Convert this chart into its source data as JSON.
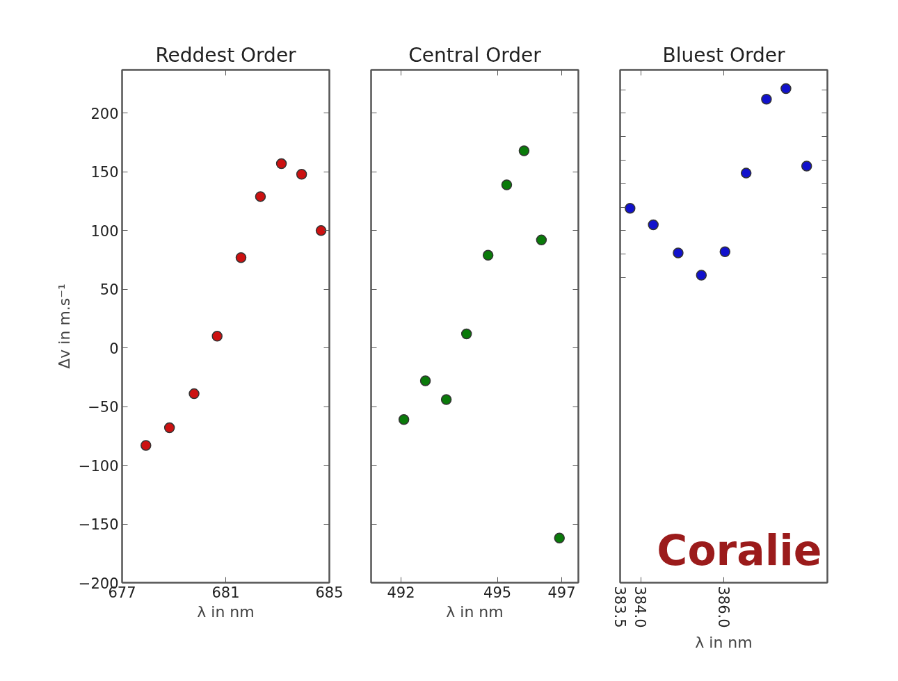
{
  "chart_data": [
    {
      "type": "scatter",
      "title": "Reddest Order",
      "xlabel": "λ in nm",
      "ylabel": "Δv in m.s⁻¹",
      "marker": "circle",
      "xlim": [
        677,
        685
      ],
      "xticks": [
        677,
        681,
        685
      ],
      "ylim": [
        -200,
        237
      ],
      "yticks": [
        {
          "value": -200,
          "label": "−200"
        },
        {
          "value": -150,
          "label": "−150"
        },
        {
          "value": -100,
          "label": "−100"
        },
        {
          "value": -50,
          "label": "−50"
        },
        0,
        50,
        100,
        150,
        200
      ],
      "series": [
        {
          "color": "#cc1111",
          "x": [
            677.92,
            678.83,
            679.78,
            680.67,
            681.59,
            682.34,
            683.15,
            683.93,
            684.68
          ],
          "values": [
            -83,
            -68,
            -39,
            10,
            77,
            129,
            157,
            148,
            100
          ]
        }
      ]
    },
    {
      "type": "scatter",
      "title": "Central Order",
      "xlabel": "λ in nm",
      "marker": "circle",
      "tick_labels": "x",
      "xlim": [
        491.07,
        497.52
      ],
      "xticks": [
        492,
        495,
        497
      ],
      "ylim": [
        -200,
        237
      ],
      "yticks": [
        -200,
        -150,
        -100,
        -50,
        0,
        50,
        100,
        150,
        200
      ],
      "series": [
        {
          "color": "#0a7a0a",
          "x": [
            492.09,
            492.76,
            493.41,
            494.04,
            494.71,
            495.29,
            495.83,
            496.37,
            496.93
          ],
          "values": [
            -61,
            -28,
            -44,
            12,
            79,
            139,
            168,
            92,
            -162
          ]
        }
      ]
    },
    {
      "type": "scatter",
      "title": "Bluest Order",
      "xlabel": "λ in nm",
      "marker": "circle",
      "tick_labels": "x",
      "xlim": [
        383.5,
        388.5
      ],
      "xticks": [
        {
          "value": 383.5,
          "label": "383.5"
        },
        {
          "value": 384.0,
          "label": "384.0"
        },
        {
          "value": 386.0,
          "label": "386.0"
        }
      ],
      "ylim": [
        -200,
        237
      ],
      "yticks": [
        {
          "value": 60,
          "label": null
        },
        {
          "value": 80,
          "label": null
        },
        {
          "value": 100,
          "label": null
        },
        {
          "value": 120,
          "label": null
        },
        {
          "value": 140,
          "label": null
        },
        {
          "value": 160,
          "label": null
        },
        {
          "value": 180,
          "label": null
        },
        {
          "value": 200,
          "label": null
        },
        {
          "value": 220,
          "label": null
        }
      ],
      "series": [
        {
          "color": "#1111cc",
          "x": [
            383.74,
            384.3,
            384.9,
            385.46,
            386.03,
            386.54,
            387.03,
            387.5,
            388.0
          ],
          "values": [
            119,
            105,
            81,
            62,
            82,
            149,
            212,
            221,
            155
          ]
        }
      ],
      "annotations": [
        "Coralie"
      ]
    }
  ]
}
